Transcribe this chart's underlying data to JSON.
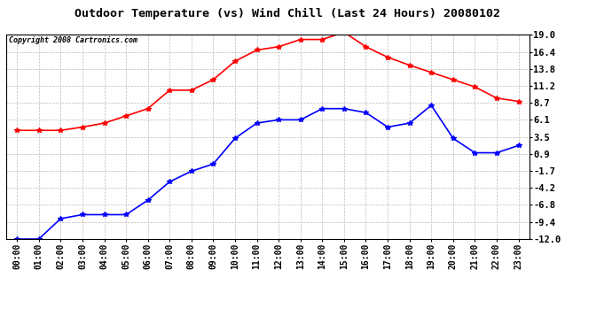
{
  "title": "Outdoor Temperature (vs) Wind Chill (Last 24 Hours) 20080102",
  "copyright": "Copyright 2008 Cartronics.com",
  "hours": [
    "00:00",
    "01:00",
    "02:00",
    "03:00",
    "04:00",
    "05:00",
    "06:00",
    "07:00",
    "08:00",
    "09:00",
    "10:00",
    "11:00",
    "12:00",
    "13:00",
    "14:00",
    "15:00",
    "16:00",
    "17:00",
    "18:00",
    "19:00",
    "20:00",
    "21:00",
    "22:00",
    "23:00"
  ],
  "temp_red": [
    4.5,
    4.5,
    4.5,
    5.0,
    5.6,
    6.7,
    7.8,
    10.6,
    10.6,
    12.2,
    15.0,
    16.7,
    17.2,
    18.3,
    18.3,
    19.4,
    17.2,
    15.6,
    14.4,
    13.3,
    12.2,
    11.1,
    9.4,
    8.9
  ],
  "wind_chill_blue": [
    -12.0,
    -12.0,
    -8.9,
    -8.3,
    -8.3,
    -8.3,
    -6.1,
    -3.3,
    -1.7,
    -0.6,
    3.3,
    5.6,
    6.1,
    6.1,
    7.8,
    7.8,
    7.2,
    5.0,
    5.6,
    8.3,
    3.3,
    1.1,
    1.1,
    2.2
  ],
  "ylim_min": -12.0,
  "ylim_max": 19.0,
  "yticks": [
    19.0,
    16.4,
    13.8,
    11.2,
    8.7,
    6.1,
    3.5,
    0.9,
    -1.7,
    -4.2,
    -6.8,
    -9.4,
    -12.0
  ],
  "red_color": "#ff0000",
  "blue_color": "#0000ff",
  "bg_color": "#ffffff",
  "grid_color": "#bbbbbb",
  "title_fontsize": 9.5,
  "copyright_fontsize": 6.0,
  "tick_fontsize": 7.0,
  "ytick_fontsize": 7.5
}
